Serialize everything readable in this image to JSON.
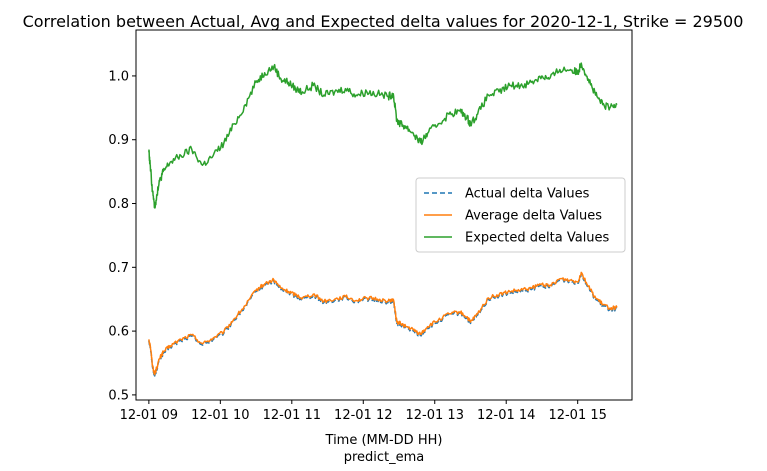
{
  "chart_data": {
    "type": "line",
    "title": "Correlation between Actual, Avg and Expected delta values for 2020-12-1, Strike = 29500",
    "xlabel": "Time (MM-DD HH)",
    "xlabel_sub": "predict_ema",
    "ylabel": "",
    "x_ticks": [
      "12-01 09",
      "12-01 10",
      "12-01 11",
      "12-01 12",
      "12-01 13",
      "12-01 14",
      "12-01 15"
    ],
    "x_tick_hours": [
      9,
      10,
      11,
      12,
      13,
      14,
      15
    ],
    "xlim_hours": [
      8.82,
      15.76
    ],
    "y_ticks": [
      0.5,
      0.6,
      0.7,
      0.8,
      0.9,
      1.0
    ],
    "y_tick_labels": [
      "0.5",
      "0.6",
      "0.7",
      "0.8",
      "0.9",
      "1.0"
    ],
    "ylim": [
      0.492,
      1.072
    ],
    "grid": false,
    "legend_position": "center-right",
    "series": [
      {
        "name": "Actual delta Values",
        "color": "#1f77b4",
        "dash": "dashed",
        "x_hours": [
          9.0,
          9.02,
          9.05,
          9.08,
          9.1,
          9.15,
          9.2,
          9.3,
          9.45,
          9.6,
          9.75,
          9.9,
          10.05,
          10.2,
          10.35,
          10.5,
          10.62,
          10.75,
          10.85,
          10.95,
          11.05,
          11.15,
          11.3,
          11.45,
          11.6,
          11.75,
          11.9,
          12.05,
          12.2,
          12.35,
          12.42,
          12.47,
          12.52,
          12.6,
          12.7,
          12.8,
          12.9,
          13.05,
          13.2,
          13.35,
          13.45,
          13.5,
          13.6,
          13.75,
          13.9,
          14.05,
          14.2,
          14.35,
          14.5,
          14.6,
          14.75,
          14.9,
          15.0,
          15.05,
          15.15,
          15.25,
          15.35,
          15.45,
          15.55
        ],
        "y": [
          0.585,
          0.575,
          0.545,
          0.53,
          0.537,
          0.555,
          0.565,
          0.575,
          0.585,
          0.592,
          0.578,
          0.587,
          0.597,
          0.618,
          0.638,
          0.662,
          0.672,
          0.678,
          0.665,
          0.66,
          0.655,
          0.65,
          0.656,
          0.645,
          0.648,
          0.652,
          0.646,
          0.65,
          0.648,
          0.645,
          0.648,
          0.612,
          0.61,
          0.605,
          0.6,
          0.593,
          0.605,
          0.615,
          0.625,
          0.628,
          0.62,
          0.612,
          0.625,
          0.65,
          0.655,
          0.66,
          0.662,
          0.665,
          0.672,
          0.668,
          0.68,
          0.678,
          0.675,
          0.69,
          0.668,
          0.65,
          0.64,
          0.634,
          0.635
        ]
      },
      {
        "name": "Average delta Values",
        "color": "#ff7f0e",
        "dash": "solid",
        "x_hours": [
          9.0,
          9.02,
          9.05,
          9.08,
          9.1,
          9.15,
          9.2,
          9.3,
          9.45,
          9.6,
          9.75,
          9.9,
          10.05,
          10.2,
          10.35,
          10.5,
          10.62,
          10.75,
          10.85,
          10.95,
          11.05,
          11.15,
          11.3,
          11.45,
          11.6,
          11.75,
          11.9,
          12.05,
          12.2,
          12.35,
          12.42,
          12.47,
          12.52,
          12.6,
          12.7,
          12.8,
          12.9,
          13.05,
          13.2,
          13.35,
          13.45,
          13.5,
          13.6,
          13.75,
          13.9,
          14.05,
          14.2,
          14.35,
          14.5,
          14.6,
          14.75,
          14.9,
          15.0,
          15.05,
          15.15,
          15.25,
          15.35,
          15.45,
          15.55
        ],
        "y": [
          0.587,
          0.577,
          0.547,
          0.532,
          0.539,
          0.557,
          0.567,
          0.577,
          0.587,
          0.594,
          0.58,
          0.589,
          0.599,
          0.62,
          0.64,
          0.664,
          0.674,
          0.68,
          0.667,
          0.662,
          0.657,
          0.652,
          0.658,
          0.647,
          0.65,
          0.654,
          0.648,
          0.652,
          0.65,
          0.647,
          0.65,
          0.614,
          0.612,
          0.607,
          0.602,
          0.595,
          0.607,
          0.617,
          0.627,
          0.63,
          0.622,
          0.614,
          0.627,
          0.652,
          0.657,
          0.662,
          0.664,
          0.667,
          0.674,
          0.67,
          0.682,
          0.68,
          0.677,
          0.692,
          0.67,
          0.652,
          0.642,
          0.636,
          0.637
        ]
      },
      {
        "name": "Expected delta Values",
        "color": "#2ca02c",
        "dash": "solid",
        "x_hours": [
          9.0,
          9.02,
          9.05,
          9.08,
          9.1,
          9.15,
          9.2,
          9.3,
          9.45,
          9.6,
          9.75,
          9.9,
          10.05,
          10.2,
          10.35,
          10.5,
          10.62,
          10.75,
          10.85,
          10.95,
          11.05,
          11.15,
          11.3,
          11.45,
          11.6,
          11.75,
          11.9,
          12.05,
          12.2,
          12.35,
          12.42,
          12.47,
          12.52,
          12.6,
          12.7,
          12.8,
          12.9,
          13.05,
          13.2,
          13.35,
          13.45,
          13.5,
          13.6,
          13.75,
          13.9,
          14.05,
          14.2,
          14.35,
          14.5,
          14.6,
          14.75,
          14.9,
          15.0,
          15.05,
          15.15,
          15.25,
          15.35,
          15.45,
          15.55
        ],
        "y": [
          0.88,
          0.86,
          0.82,
          0.795,
          0.805,
          0.835,
          0.85,
          0.865,
          0.875,
          0.885,
          0.86,
          0.875,
          0.895,
          0.925,
          0.955,
          0.99,
          1.005,
          1.015,
          0.995,
          0.99,
          0.98,
          0.975,
          0.985,
          0.97,
          0.975,
          0.98,
          0.97,
          0.975,
          0.972,
          0.968,
          0.972,
          0.93,
          0.925,
          0.92,
          0.91,
          0.895,
          0.91,
          0.925,
          0.94,
          0.945,
          0.935,
          0.925,
          0.94,
          0.97,
          0.975,
          0.985,
          0.985,
          0.99,
          1.0,
          0.995,
          1.01,
          1.01,
          1.005,
          1.02,
          0.995,
          0.97,
          0.955,
          0.95,
          0.955
        ]
      }
    ]
  }
}
